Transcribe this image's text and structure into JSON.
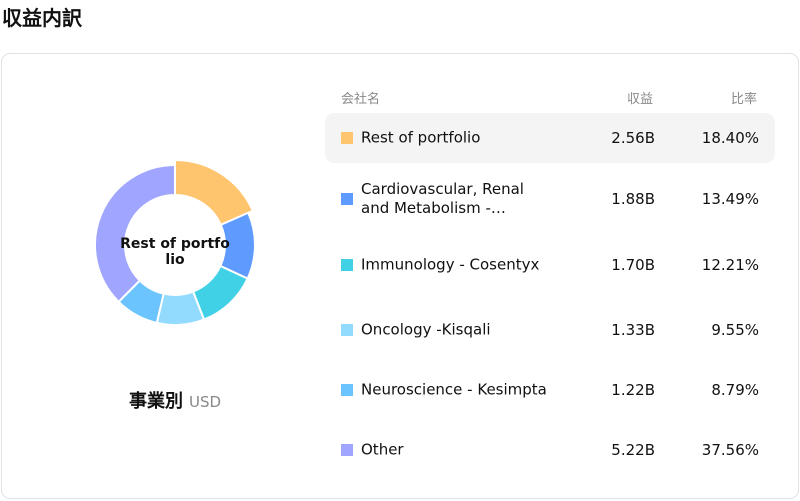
{
  "title": "収益内訳",
  "center_label": "Rest of portfolio",
  "caption": {
    "main": "事業別",
    "unit": "USD"
  },
  "headers": {
    "name": "会社名",
    "revenue": "収益",
    "ratio": "比率"
  },
  "rows": [
    {
      "name": "Rest of portfolio",
      "revenue": "2.56B",
      "ratio": "18.40%",
      "pct": 18.4,
      "color": "#FFC46E",
      "selected": true
    },
    {
      "name": "Cardiovascular, Renal and Metabolism -…",
      "revenue": "1.88B",
      "ratio": "13.49%",
      "pct": 13.49,
      "color": "#5F9BFF"
    },
    {
      "name": "Immunology - Cosentyx",
      "revenue": "1.70B",
      "ratio": "12.21%",
      "pct": 12.21,
      "color": "#41D1E6"
    },
    {
      "name": "Oncology -Kisqali",
      "revenue": "1.33B",
      "ratio": "9.55%",
      "pct": 9.55,
      "color": "#93DAFF"
    },
    {
      "name": "Neuroscience - Kesimpta",
      "revenue": "1.22B",
      "ratio": "8.79%",
      "pct": 8.79,
      "color": "#6CC4FF"
    },
    {
      "name": "Other",
      "revenue": "5.22B",
      "ratio": "37.56%",
      "pct": 37.56,
      "color": "#A0A6FF"
    }
  ]
}
